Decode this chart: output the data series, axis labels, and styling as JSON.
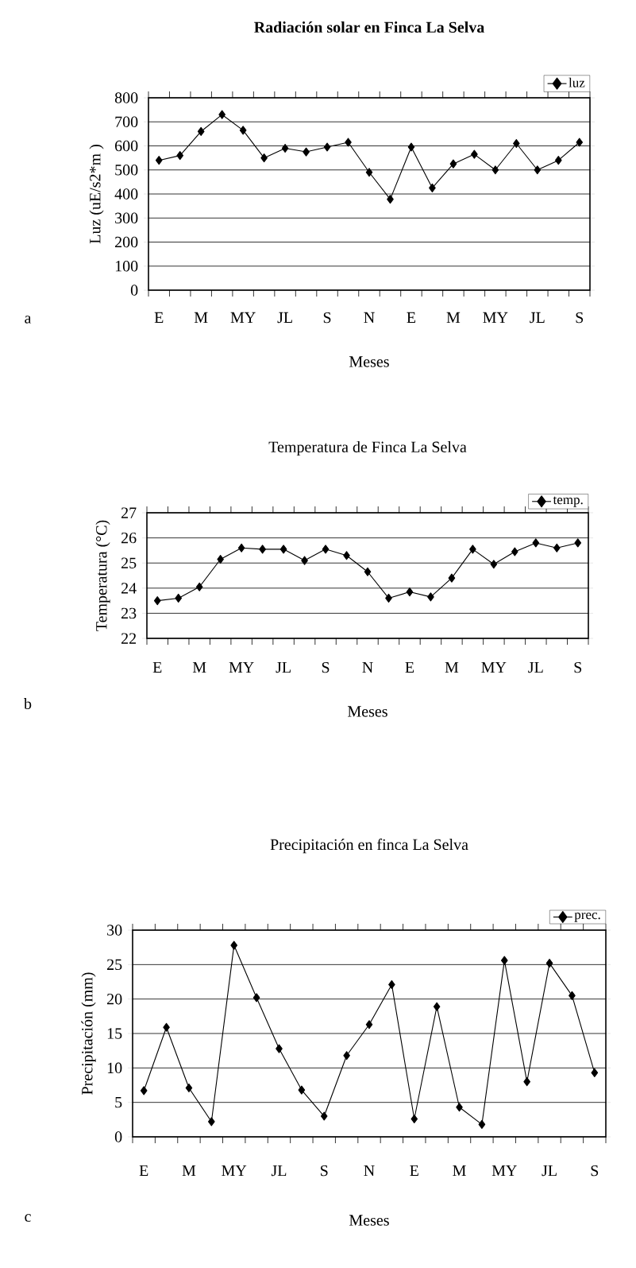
{
  "chart_data": [
    {
      "type": "line",
      "title": "Radiación solar en Finca La Selva",
      "xlabel": "Meses",
      "ylabel": "Luz (uE/s2*m )",
      "annotations": [
        "a"
      ],
      "categories": [
        "E",
        null,
        "M",
        null,
        "MY",
        null,
        "JL",
        null,
        "S",
        null,
        "N",
        null,
        "E",
        null,
        "M",
        null,
        "MY",
        null,
        "JL",
        null,
        "S"
      ],
      "series": [
        {
          "name": "luz",
          "color": "#000000",
          "values": [
            540,
            560,
            660,
            730,
            665,
            550,
            590,
            575,
            595,
            615,
            490,
            378,
            595,
            425,
            525,
            565,
            500,
            610,
            500,
            540,
            615
          ]
        }
      ],
      "ylim": [
        0,
        800
      ],
      "yticks": [
        0,
        100,
        200,
        300,
        400,
        500,
        600,
        700,
        800
      ],
      "grid": "y",
      "legend": "top right",
      "marker": "diamond"
    },
    {
      "type": "line",
      "title": "Temperatura de Finca La Selva",
      "xlabel": "Meses",
      "ylabel": "Temperatura (°C)",
      "annotations": [
        "b"
      ],
      "categories": [
        "E",
        null,
        "M",
        null,
        "MY",
        null,
        "JL",
        null,
        "S",
        null,
        "N",
        null,
        "E",
        null,
        "M",
        null,
        "MY",
        null,
        "JL",
        null,
        "S"
      ],
      "series": [
        {
          "name": "temp.",
          "color": "#000000",
          "values": [
            23.5,
            23.6,
            24.05,
            25.15,
            25.6,
            25.55,
            25.55,
            25.1,
            25.55,
            25.3,
            24.65,
            23.6,
            23.85,
            23.65,
            24.4,
            25.55,
            24.95,
            25.45,
            25.8,
            25.6,
            25.8
          ]
        }
      ],
      "ylim": [
        22,
        27
      ],
      "yticks": [
        22,
        23,
        24,
        25,
        26,
        27
      ],
      "grid": "y",
      "legend": "top right",
      "marker": "diamond"
    },
    {
      "type": "line",
      "title": "Precipitación en finca La Selva",
      "xlabel": "Meses",
      "ylabel": "Precipitación (mm)",
      "annotations": [
        "c"
      ],
      "categories": [
        "E",
        null,
        "M",
        null,
        "MY",
        null,
        "JL",
        null,
        "S",
        null,
        "N",
        null,
        "E",
        null,
        "M",
        null,
        "MY",
        null,
        "JL",
        null,
        "S"
      ],
      "series": [
        {
          "name": "prec.",
          "color": "#000000",
          "values": [
            6.7,
            15.9,
            7.1,
            2.2,
            27.8,
            20.2,
            12.8,
            6.8,
            3.0,
            11.8,
            16.3,
            22.1,
            2.6,
            18.9,
            4.3,
            1.8,
            25.6,
            8.0,
            25.2,
            20.5,
            9.3
          ]
        }
      ],
      "ylim": [
        0,
        30
      ],
      "yticks": [
        0,
        5,
        10,
        15,
        20,
        25,
        30
      ],
      "grid": "y",
      "legend": "top right",
      "marker": "diamond"
    }
  ]
}
